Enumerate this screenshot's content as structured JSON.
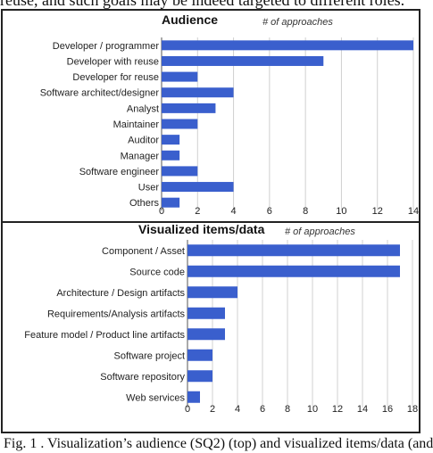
{
  "page": {
    "top_text": "reuse, and such goals may be indeed targeted to different roles.",
    "caption": "Fig. 1 . Visualization’s audience (SQ2) (top) and visualized items/data (and"
  },
  "colors": {
    "bar": "#3a5fcd",
    "grid": "#d0d0d0",
    "axis": "#555555",
    "text": "#222222"
  },
  "chart_data": [
    {
      "type": "bar",
      "orientation": "horizontal",
      "title": "Audience",
      "value_label": "# of approaches",
      "categories": [
        "Developer / programmer",
        "Developer with reuse",
        "Developer for reuse",
        "Software architect/designer",
        "Analyst",
        "Maintainer",
        "Auditor",
        "Manager",
        "Software engineer",
        "User",
        "Others"
      ],
      "values": [
        14,
        9,
        2,
        4,
        3,
        2,
        1,
        1,
        2,
        4,
        1
      ],
      "xlim": [
        0,
        14
      ],
      "ticks": [
        0,
        2,
        4,
        6,
        8,
        10,
        12,
        14
      ],
      "grid": true
    },
    {
      "type": "bar",
      "orientation": "horizontal",
      "title": "Visualized items/data",
      "value_label": "# of approaches",
      "categories": [
        "Component / Asset",
        "Source code",
        "Architecture / Design artifacts",
        "Requirements/Analysis artifacts",
        "Feature model / Product line artifacts",
        "Software project",
        "Software repository",
        "Web services"
      ],
      "values": [
        17,
        17,
        4,
        3,
        3,
        2,
        2,
        1
      ],
      "xlim": [
        0,
        18
      ],
      "ticks": [
        0,
        2,
        4,
        6,
        8,
        10,
        12,
        14,
        16,
        18
      ],
      "grid": true
    }
  ]
}
